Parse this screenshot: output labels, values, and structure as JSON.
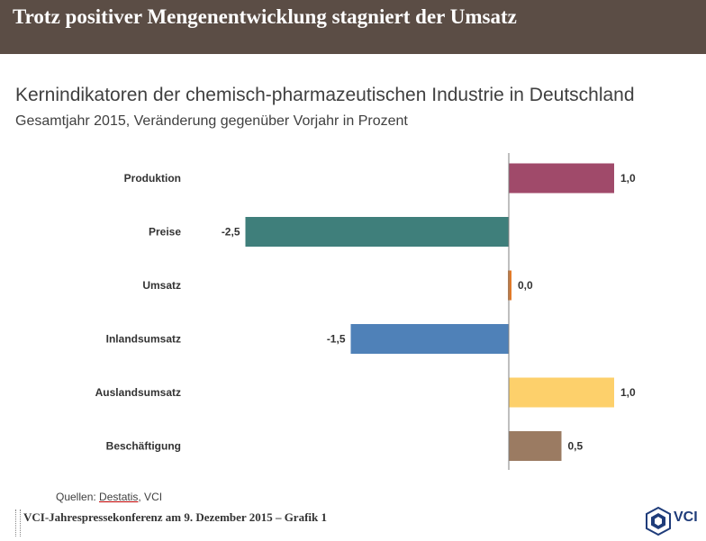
{
  "header": {
    "title": "Trotz positiver Mengenentwicklung stagniert der Umsatz",
    "color": "#5b4d45"
  },
  "chart_data": {
    "type": "bar",
    "orientation": "horizontal",
    "title": "Kernindikatoren der chemisch-pharmazeutischen Industrie in Deutschland",
    "subtitle": "Gesamtjahr 2015, Veränderung gegenüber Vorjahr in Prozent",
    "categories": [
      "Produktion",
      "Preise",
      "Umsatz",
      "Inlandsumsatz",
      "Auslandsumsatz",
      "Beschäftigung"
    ],
    "values": [
      1.0,
      -2.5,
      0.0,
      -1.5,
      1.0,
      0.5
    ],
    "value_labels": [
      "1,0",
      "-2,5",
      "0,0",
      "-1,5",
      "1,0",
      "0,5"
    ],
    "colors": [
      "#a04a6a",
      "#3f7f7b",
      "#e07a2a",
      "#4f81b8",
      "#fdd06b",
      "#9b7b62"
    ],
    "xlim": [
      -2.5,
      1.0
    ],
    "grid": false,
    "legend": "none"
  },
  "footer": {
    "source_prefix": "Quellen: ",
    "source_link": "Destatis",
    "source_suffix": ", VCI",
    "conference": "VCI-Jahrespressekonferenz am 9. Dezember 2015 – Grafik 1",
    "logo_text": "VCI"
  }
}
